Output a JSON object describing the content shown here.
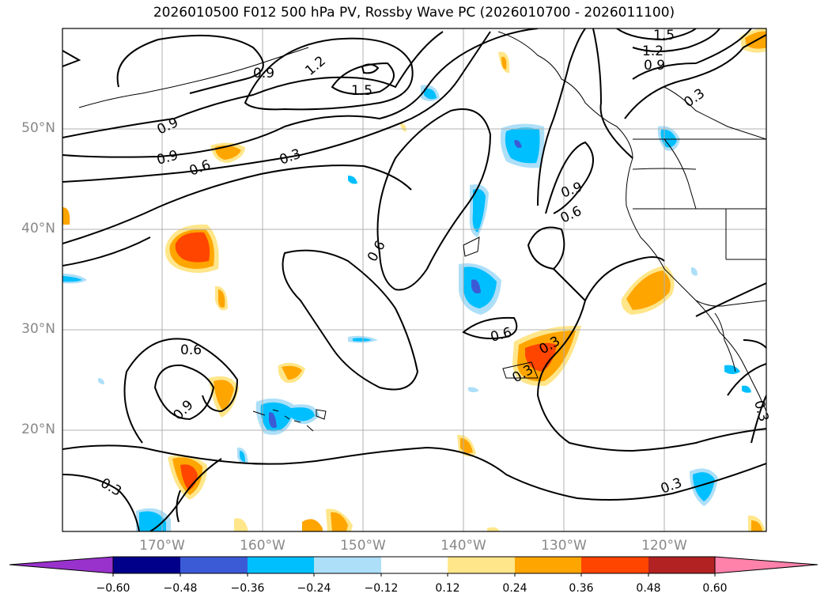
{
  "title": "2026010500 F012 500 hPa PV, Rossby Wave PC (2026010700 - 2026011100)",
  "map": {
    "lat_labels": [
      "50°N",
      "40°N",
      "30°N",
      "20°N"
    ],
    "lon_labels": [
      "170°W",
      "160°W",
      "150°W",
      "140°W",
      "130°W",
      "120°W"
    ],
    "contour_labels": [
      "0.9",
      "1.2",
      "1.5",
      "1.5",
      "1.2",
      "0.9",
      "0.9",
      "0.9",
      "0.6",
      "0.3",
      "0.3",
      "0.6",
      "0.9",
      "0.6",
      "0.6",
      "0.6",
      "0.9",
      "0.3",
      "0.3",
      "0.3",
      "0.3",
      "0.3"
    ]
  },
  "colorbar": {
    "ticks": [
      "−0.60",
      "−0.48",
      "−0.36",
      "−0.24",
      "−0.12",
      "0.12",
      "0.24",
      "0.36",
      "0.48",
      "0.60"
    ],
    "colors": [
      "#9932CC",
      "#00008B",
      "#3B5BD6",
      "#00BFFF",
      "#ADDFF8",
      "#FFFFFF",
      "#FFE68A",
      "#FFA500",
      "#FF4500",
      "#B22222",
      "#FF82AB"
    ]
  }
}
